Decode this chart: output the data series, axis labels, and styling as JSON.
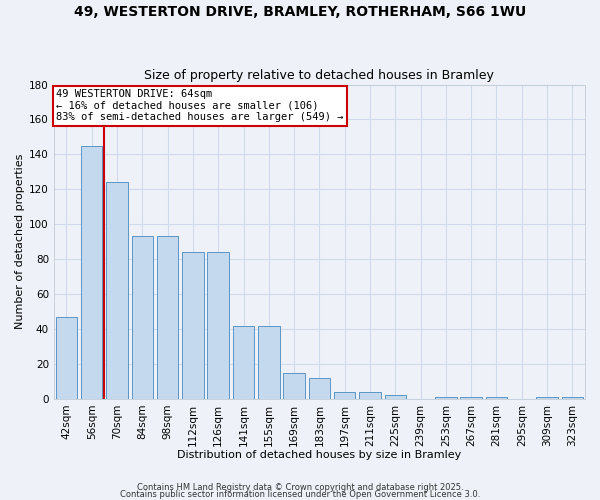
{
  "title": "49, WESTERTON DRIVE, BRAMLEY, ROTHERHAM, S66 1WU",
  "subtitle": "Size of property relative to detached houses in Bramley",
  "xlabel": "Distribution of detached houses by size in Bramley",
  "ylabel": "Number of detached properties",
  "categories": [
    "42sqm",
    "56sqm",
    "70sqm",
    "84sqm",
    "98sqm",
    "112sqm",
    "126sqm",
    "141sqm",
    "155sqm",
    "169sqm",
    "183sqm",
    "197sqm",
    "211sqm",
    "225sqm",
    "239sqm",
    "253sqm",
    "267sqm",
    "281sqm",
    "295sqm",
    "309sqm",
    "323sqm"
  ],
  "values": [
    47,
    145,
    124,
    93,
    93,
    84,
    84,
    42,
    42,
    15,
    12,
    4,
    4,
    2,
    0,
    1,
    1,
    1,
    0,
    1,
    1
  ],
  "bar_color": "#c5d9ee",
  "bar_edge_color": "#5a96c8",
  "grid_color": "#d0daea",
  "bg_color": "#eef2f8",
  "vline_color": "#cc0000",
  "vline_x": 1.5,
  "annotation_text": "49 WESTERTON DRIVE: 64sqm\n← 16% of detached houses are smaller (106)\n83% of semi-detached houses are larger (549) →",
  "annotation_box_edgecolor": "#cc0000",
  "ylim": [
    0,
    180
  ],
  "yticks": [
    0,
    20,
    40,
    60,
    80,
    100,
    120,
    140,
    160,
    180
  ],
  "footer1": "Contains HM Land Registry data © Crown copyright and database right 2025.",
  "footer2": "Contains public sector information licensed under the Open Government Licence 3.0.",
  "title_fontsize": 10,
  "subtitle_fontsize": 9,
  "axis_label_fontsize": 8,
  "tick_fontsize": 7.5,
  "annotation_fontsize": 7.5,
  "bar_width": 0.85
}
